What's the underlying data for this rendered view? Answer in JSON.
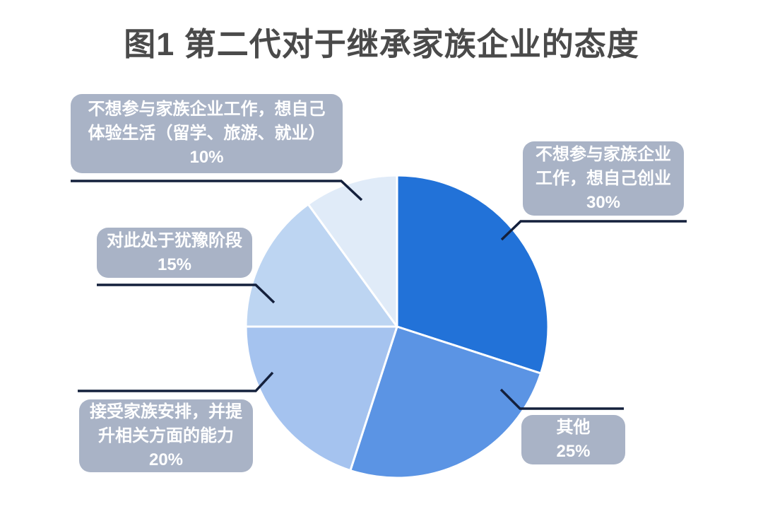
{
  "page": {
    "title_color": "#4a4a4a",
    "background": "#ffffff"
  },
  "chart_data": {
    "type": "pie",
    "title": "图1 第二代对于继承家族企业的态度",
    "start_angle_deg": 0,
    "direction": "clockwise",
    "legend_position": "callout-labels",
    "total": 100,
    "callout_box_color": "#a9b3c6",
    "callout_text_color": "#ffffff",
    "leader_line_color": "#14203c",
    "segments": [
      {
        "label": "不想参与家族企业工作，想自己创业",
        "value": 30,
        "unit": "%",
        "color": "#2272d8",
        "callout_text": "不想参与家族企业\n工作，想自己创业\n30%"
      },
      {
        "label": "其他",
        "value": 25,
        "unit": "%",
        "color": "#5b94e4",
        "callout_text": "其他\n25%"
      },
      {
        "label": "接受家族安排，并提升相关方面的能力",
        "value": 20,
        "unit": "%",
        "color": "#a5c3ef",
        "callout_text": "接受家族安排，并提\n升相关方面的能力\n20%"
      },
      {
        "label": "对此处于犹豫阶段",
        "value": 15,
        "unit": "%",
        "color": "#bdd5f2",
        "callout_text": "对此处于犹豫阶段\n15%"
      },
      {
        "label": "不想参与家族企业工作，想自己体验生活（留学、旅游、就业）",
        "value": 10,
        "unit": "%",
        "color": "#e0ebf8",
        "callout_text": "不想参与家族企业工作，想自己\n体验生活（留学、旅游、就业）\n10%"
      }
    ]
  }
}
